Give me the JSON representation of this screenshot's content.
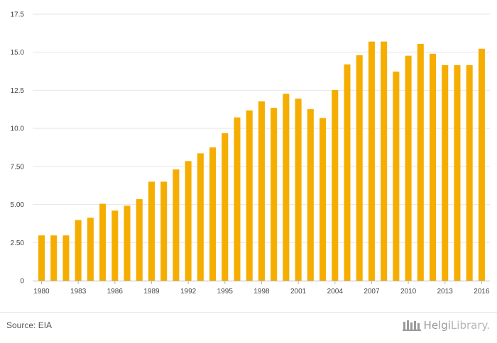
{
  "chart_data": {
    "type": "bar",
    "categories": [
      "1980",
      "1981",
      "1982",
      "1983",
      "1984",
      "1985",
      "1986",
      "1987",
      "1988",
      "1989",
      "1990",
      "1991",
      "1992",
      "1993",
      "1994",
      "1995",
      "1996",
      "1997",
      "1998",
      "1999",
      "2000",
      "2001",
      "2002",
      "2003",
      "2004",
      "2005",
      "2006",
      "2007",
      "2008",
      "2009",
      "2010",
      "2011",
      "2012",
      "2013",
      "2014",
      "2015",
      "2016"
    ],
    "values": [
      2.97,
      2.97,
      2.97,
      3.98,
      4.13,
      5.05,
      4.6,
      4.92,
      5.35,
      6.5,
      6.5,
      7.3,
      7.85,
      8.36,
      8.75,
      9.68,
      10.72,
      11.18,
      11.77,
      11.35,
      12.27,
      11.95,
      11.26,
      10.68,
      12.52,
      14.2,
      14.8,
      15.7,
      15.7,
      13.73,
      14.77,
      15.55,
      14.9,
      14.15,
      14.15,
      14.15,
      15.23
    ],
    "x_tick_labels": [
      "1980",
      "1983",
      "1986",
      "1989",
      "1992",
      "1995",
      "1998",
      "2001",
      "2004",
      "2007",
      "2010",
      "2013",
      "2016"
    ],
    "y_tick_labels": [
      "0",
      "2.50",
      "5.00",
      "7.50",
      "10.0",
      "12.5",
      "15.0",
      "17.5"
    ],
    "ylim": [
      0,
      17.5
    ],
    "grid": true,
    "bar_color": "#f5ad00",
    "title": "",
    "xlabel": "",
    "ylabel": ""
  },
  "footer": {
    "source": "Source: EIA",
    "logo_part1": "Helgi",
    "logo_part2": "Library."
  }
}
